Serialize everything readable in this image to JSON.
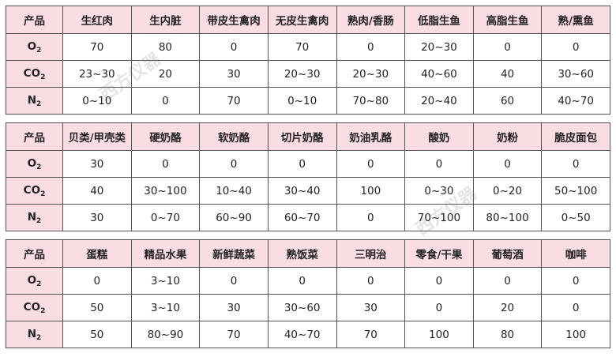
{
  "header_label": "产品",
  "gases": [
    {
      "base": "O",
      "sub": "2"
    },
    {
      "base": "CO",
      "sub": "2"
    },
    {
      "base": "N",
      "sub": "2"
    }
  ],
  "watermark": "西方仪器",
  "tables": [
    {
      "products": [
        "生红肉",
        "生内脏",
        "带皮生禽肉",
        "无皮生禽肉",
        "熟肉/香肠",
        "低脂生鱼",
        "高脂生鱼",
        "熟/熏鱼"
      ],
      "rows": [
        [
          "70",
          "80",
          "0",
          "70",
          "0",
          "20~30",
          "0",
          "0"
        ],
        [
          "23~30",
          "20",
          "30",
          "20~30",
          "20~30",
          "40~60",
          "40",
          "30~60"
        ],
        [
          "0~10",
          "0",
          "70",
          "0~10",
          "70~80",
          "20~40",
          "60",
          "40~70"
        ]
      ]
    },
    {
      "products": [
        "贝类/甲壳类",
        "硬奶酪",
        "软奶酪",
        "切片奶酪",
        "奶油乳酪",
        "酸奶",
        "奶粉",
        "脆皮面包"
      ],
      "rows": [
        [
          "30",
          "0",
          "0",
          "0",
          "0",
          "0",
          "0",
          "0"
        ],
        [
          "40",
          "30~100",
          "10~40",
          "30~40",
          "100",
          "0~30",
          "0~20",
          "50~100"
        ],
        [
          "30",
          "0~70",
          "60~90",
          "60~70",
          "0",
          "70~100",
          "80~100",
          "0~50"
        ]
      ]
    },
    {
      "products": [
        "蛋糕",
        "精品水果",
        "新鲜蔬菜",
        "熟饭菜",
        "三明治",
        "零食/干果",
        "葡萄酒",
        "咖啡"
      ],
      "rows": [
        [
          "0",
          "3~10",
          "0",
          "0",
          "0",
          "0",
          "0",
          "0"
        ],
        [
          "50",
          "3~10",
          "30",
          "30~60",
          "30",
          "0",
          "20",
          "0"
        ],
        [
          "50",
          "80~90",
          "70",
          "40~70",
          "70",
          "100",
          "80",
          "100"
        ]
      ]
    }
  ]
}
